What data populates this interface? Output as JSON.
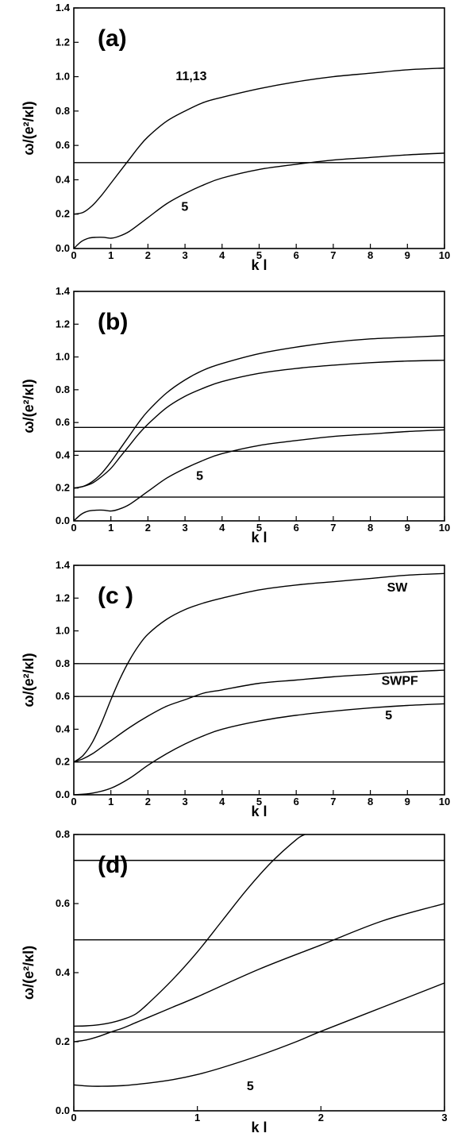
{
  "chart_data": [
    {
      "id": "a",
      "type": "line",
      "panel_label": "(a)",
      "xlabel": "k l",
      "ylabel": "ω/(e²/κl)",
      "xlim": [
        0,
        10
      ],
      "ylim": [
        0,
        1.4
      ],
      "xticks": [
        0,
        1,
        2,
        3,
        4,
        5,
        6,
        7,
        8,
        9,
        10
      ],
      "yticks": [
        0.0,
        0.2,
        0.4,
        0.6,
        0.8,
        1.0,
        1.2,
        1.4
      ],
      "ytick_labels": [
        "0.0",
        "0.2",
        "0.4",
        "0.6",
        "0.8",
        "1.0",
        "1.2",
        "1.4"
      ],
      "xtick_labels": [
        "0",
        "1",
        "2",
        "3",
        "4",
        "5",
        "6",
        "7",
        "8",
        "9",
        "10"
      ],
      "hlines": [
        0.5
      ],
      "series": [
        {
          "name": "11,13",
          "x": [
            0,
            0.25,
            0.5,
            0.75,
            1,
            1.25,
            1.5,
            1.75,
            2,
            2.5,
            3,
            3.5,
            4,
            5,
            6,
            7,
            8,
            9,
            10
          ],
          "y": [
            0.2,
            0.21,
            0.25,
            0.31,
            0.38,
            0.45,
            0.52,
            0.59,
            0.65,
            0.74,
            0.8,
            0.85,
            0.88,
            0.93,
            0.97,
            1.0,
            1.02,
            1.04,
            1.05
          ]
        },
        {
          "name": "5",
          "x": [
            0,
            0.2,
            0.4,
            0.6,
            0.8,
            1,
            1.2,
            1.5,
            2,
            2.5,
            3,
            3.5,
            4,
            5,
            6,
            7,
            8,
            9,
            10
          ],
          "y": [
            0.0,
            0.04,
            0.06,
            0.065,
            0.065,
            0.06,
            0.07,
            0.1,
            0.18,
            0.26,
            0.32,
            0.37,
            0.41,
            0.46,
            0.49,
            0.515,
            0.53,
            0.545,
            0.555
          ]
        }
      ],
      "annotations": [
        {
          "text": "11,13",
          "x": 2.75,
          "y": 0.98
        },
        {
          "text": "5",
          "x": 2.9,
          "y": 0.22
        }
      ]
    },
    {
      "id": "b",
      "type": "line",
      "panel_label": "(b)",
      "xlabel": "k l",
      "ylabel": "ω/(e²/κl)",
      "xlim": [
        0,
        10
      ],
      "ylim": [
        0,
        1.4
      ],
      "xticks": [
        0,
        1,
        2,
        3,
        4,
        5,
        6,
        7,
        8,
        9,
        10
      ],
      "yticks": [
        0.0,
        0.2,
        0.4,
        0.6,
        0.8,
        1.0,
        1.2,
        1.4
      ],
      "ytick_labels": [
        "0.0",
        "0.2",
        "0.4",
        "0.6",
        "0.8",
        "1.0",
        "1.2",
        "1.4"
      ],
      "xtick_labels": [
        "0",
        "1",
        "2",
        "3",
        "4",
        "5",
        "6",
        "7",
        "8",
        "9",
        "10"
      ],
      "hlines": [
        0.57,
        0.425,
        0.145
      ],
      "series": [
        {
          "x": [
            0,
            0.25,
            0.5,
            0.75,
            1,
            1.25,
            1.5,
            1.75,
            2,
            2.5,
            3,
            3.5,
            4,
            5,
            6,
            7,
            8,
            9,
            10
          ],
          "y": [
            0.2,
            0.21,
            0.24,
            0.29,
            0.36,
            0.44,
            0.52,
            0.6,
            0.67,
            0.78,
            0.86,
            0.92,
            0.96,
            1.02,
            1.06,
            1.09,
            1.11,
            1.12,
            1.13
          ]
        },
        {
          "x": [
            0,
            0.25,
            0.5,
            0.75,
            1,
            1.25,
            1.5,
            1.75,
            2,
            2.5,
            3,
            3.5,
            4,
            5,
            6,
            7,
            8,
            9,
            10
          ],
          "y": [
            0.2,
            0.21,
            0.23,
            0.27,
            0.32,
            0.39,
            0.46,
            0.53,
            0.59,
            0.69,
            0.76,
            0.81,
            0.85,
            0.9,
            0.93,
            0.95,
            0.965,
            0.975,
            0.98
          ]
        },
        {
          "name": "5",
          "x": [
            0,
            0.2,
            0.4,
            0.6,
            0.8,
            1,
            1.2,
            1.5,
            2,
            2.5,
            3,
            3.5,
            4,
            5,
            6,
            7,
            8,
            9,
            10
          ],
          "y": [
            0.0,
            0.04,
            0.06,
            0.065,
            0.065,
            0.06,
            0.07,
            0.1,
            0.18,
            0.26,
            0.32,
            0.37,
            0.41,
            0.46,
            0.49,
            0.515,
            0.53,
            0.545,
            0.555
          ]
        }
      ],
      "annotations": [
        {
          "text": "5",
          "x": 3.3,
          "y": 0.25
        }
      ]
    },
    {
      "id": "c",
      "type": "line",
      "panel_label": "(c )",
      "xlabel": "k l",
      "ylabel": "ω/(e²/κl)",
      "xlim": [
        0,
        10
      ],
      "ylim": [
        0,
        1.4
      ],
      "xticks": [
        0,
        1,
        2,
        3,
        4,
        5,
        6,
        7,
        8,
        9,
        10
      ],
      "yticks": [
        0.0,
        0.2,
        0.4,
        0.6,
        0.8,
        1.0,
        1.2,
        1.4
      ],
      "ytick_labels": [
        "0.0",
        "0.2",
        "0.4",
        "0.6",
        "0.8",
        "1.0",
        "1.2",
        "1.4"
      ],
      "xtick_labels": [
        "0",
        "1",
        "2",
        "3",
        "4",
        "5",
        "6",
        "7",
        "8",
        "9",
        "10"
      ],
      "hlines": [
        0.8,
        0.6,
        0.2
      ],
      "series": [
        {
          "name": "SW",
          "x": [
            0,
            0.25,
            0.5,
            0.75,
            1,
            1.25,
            1.5,
            1.75,
            2,
            2.5,
            3,
            3.5,
            4,
            5,
            6,
            7,
            8,
            9,
            10
          ],
          "y": [
            0.2,
            0.24,
            0.32,
            0.44,
            0.58,
            0.71,
            0.82,
            0.91,
            0.98,
            1.07,
            1.13,
            1.17,
            1.2,
            1.25,
            1.28,
            1.3,
            1.32,
            1.34,
            1.35
          ]
        },
        {
          "name": "SWPF",
          "x": [
            0,
            0.25,
            0.5,
            0.75,
            1,
            1.5,
            2,
            2.5,
            3,
            3.5,
            4,
            5,
            6,
            7,
            8,
            9,
            10
          ],
          "y": [
            0.2,
            0.22,
            0.25,
            0.29,
            0.33,
            0.41,
            0.48,
            0.54,
            0.58,
            0.62,
            0.64,
            0.68,
            0.7,
            0.72,
            0.735,
            0.75,
            0.76
          ]
        },
        {
          "name": "5",
          "x": [
            0,
            0.5,
            1,
            1.5,
            2,
            2.5,
            3,
            3.5,
            4,
            5,
            6,
            7,
            8,
            9,
            10
          ],
          "y": [
            0.0,
            0.01,
            0.04,
            0.1,
            0.18,
            0.25,
            0.31,
            0.36,
            0.4,
            0.45,
            0.485,
            0.51,
            0.53,
            0.545,
            0.555
          ]
        }
      ],
      "annotations": [
        {
          "text": "SW",
          "x": 8.45,
          "y": 1.24
        },
        {
          "text": "SWPF",
          "x": 8.3,
          "y": 0.67
        },
        {
          "text": "5",
          "x": 8.4,
          "y": 0.46
        }
      ]
    },
    {
      "id": "d",
      "type": "line",
      "panel_label": "(d)",
      "xlabel": "k l",
      "ylabel": "ω/(e²/κl)",
      "xlim": [
        0,
        3
      ],
      "ylim": [
        0,
        0.8
      ],
      "xticks": [
        0,
        1,
        2,
        3
      ],
      "yticks": [
        0.0,
        0.2,
        0.4,
        0.6,
        0.8
      ],
      "ytick_labels": [
        "0.0",
        "0.2",
        "0.4",
        "0.6",
        "0.8"
      ],
      "xtick_labels": [
        "0",
        "1",
        "2",
        "3"
      ],
      "hlines": [
        0.725,
        0.495,
        0.228
      ],
      "series": [
        {
          "x": [
            0,
            0.1,
            0.2,
            0.3,
            0.4,
            0.5,
            0.6,
            0.8,
            1.0,
            1.2,
            1.4,
            1.6,
            1.8,
            1.87
          ],
          "y": [
            0.245,
            0.246,
            0.249,
            0.255,
            0.265,
            0.28,
            0.31,
            0.38,
            0.46,
            0.55,
            0.64,
            0.72,
            0.785,
            0.8
          ]
        },
        {
          "x": [
            0,
            0.1,
            0.2,
            0.3,
            0.4,
            0.5,
            0.6,
            0.8,
            1.0,
            1.5,
            2.0,
            2.5,
            3.0
          ],
          "y": [
            0.2,
            0.205,
            0.215,
            0.228,
            0.24,
            0.255,
            0.27,
            0.3,
            0.33,
            0.41,
            0.48,
            0.55,
            0.6
          ]
        },
        {
          "name": "5",
          "x": [
            0,
            0.1,
            0.2,
            0.4,
            0.6,
            0.8,
            1.0,
            1.2,
            1.5,
            1.8,
            2.0,
            2.5,
            3.0
          ],
          "y": [
            0.075,
            0.072,
            0.071,
            0.073,
            0.08,
            0.09,
            0.105,
            0.125,
            0.16,
            0.2,
            0.23,
            0.3,
            0.37
          ]
        }
      ],
      "annotations": [
        {
          "text": "5",
          "x": 1.4,
          "y": 0.06
        }
      ]
    }
  ]
}
